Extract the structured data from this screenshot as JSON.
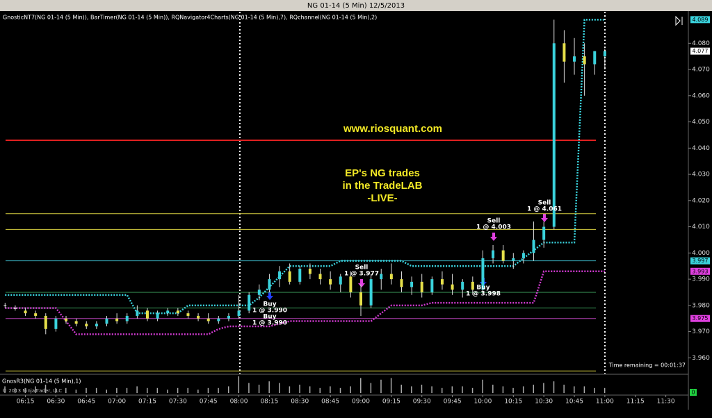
{
  "chart_data": {
    "type": "candlestick",
    "title": "NG 01-14 (5 Min)  12/5/2013",
    "indicators": "GnosticNT7(NG 01-14 (5 Min)), BarTimer(NG 01-14 (5 Min)), RQNavigator4Charts(NG 01-14 (5 Min),7), RQchannel(NG 01-14 (5 Min),2)",
    "categories": [
      null,
      null,
      "06:15",
      null,
      null,
      "06:30",
      null,
      null,
      "06:45",
      null,
      null,
      "07:00",
      null,
      null,
      "07:15",
      null,
      null,
      "07:30",
      null,
      null,
      "07:45",
      null,
      null,
      "08:00",
      null,
      null,
      "08:15",
      null,
      null,
      "08:30",
      null,
      null,
      "08:45",
      null,
      null,
      "09:00",
      null,
      null,
      "09:15",
      null,
      null,
      "09:30",
      null,
      null,
      "09:45",
      null,
      null,
      "10:00",
      null,
      null,
      "10:15",
      null,
      null,
      "10:30",
      null,
      null,
      "10:45",
      null,
      null,
      "11:00",
      null,
      null,
      "11:15",
      null,
      null,
      "11:30",
      null,
      null
    ],
    "open": [
      3.98,
      3.979,
      3.978,
      3.977,
      3.976,
      3.971,
      3.975,
      3.974,
      3.973,
      3.972,
      3.973,
      3.975,
      3.974,
      3.976,
      3.978,
      3.975,
      3.977,
      3.978,
      3.977,
      3.976,
      3.975,
      3.974,
      3.975,
      3.976,
      3.978,
      3.984,
      3.986,
      3.99,
      3.993,
      3.989,
      3.994,
      3.992,
      3.99,
      3.988,
      3.991,
      3.985,
      3.98,
      3.99,
      3.992,
      3.99,
      3.987,
      3.989,
      3.985,
      3.99,
      3.988,
      3.986,
      3.989,
      3.986,
      3.998,
      4.001,
      3.997,
      3.998,
      4.0,
      4.005,
      4.01,
      4.08,
      4.073,
      4.075,
      4.072,
      4.075,
      null,
      null,
      null,
      null,
      null,
      null,
      null,
      null
    ],
    "high": [
      3.981,
      3.98,
      3.979,
      3.978,
      3.977,
      3.976,
      3.976,
      3.975,
      3.974,
      3.974,
      3.976,
      3.977,
      3.977,
      3.98,
      3.979,
      3.978,
      3.979,
      3.979,
      3.978,
      3.977,
      3.977,
      3.976,
      3.977,
      3.984,
      3.985,
      3.988,
      3.992,
      3.995,
      3.996,
      3.995,
      3.996,
      3.994,
      3.993,
      3.992,
      3.993,
      3.988,
      3.992,
      3.994,
      3.996,
      3.993,
      3.991,
      3.992,
      3.991,
      3.993,
      3.992,
      3.99,
      3.991,
      4.001,
      4.003,
      4.003,
      4.0,
      4.001,
      4.012,
      4.012,
      4.089,
      4.085,
      4.082,
      4.08,
      4.077,
      4.078,
      null,
      null,
      null,
      null,
      null,
      null,
      null,
      null
    ],
    "low": [
      3.979,
      3.978,
      3.976,
      3.975,
      3.969,
      3.97,
      3.973,
      3.972,
      3.971,
      3.971,
      3.972,
      3.973,
      3.973,
      3.975,
      3.974,
      3.974,
      3.976,
      3.976,
      3.975,
      3.974,
      3.973,
      3.973,
      3.974,
      3.975,
      3.977,
      3.982,
      3.985,
      3.987,
      3.988,
      3.988,
      3.99,
      3.988,
      3.986,
      3.985,
      3.983,
      3.976,
      3.979,
      3.986,
      3.988,
      3.985,
      3.984,
      3.983,
      3.984,
      3.986,
      3.984,
      3.983,
      3.984,
      3.985,
      3.996,
      3.996,
      3.994,
      3.996,
      3.997,
      4.002,
      4.009,
      4.065,
      4.068,
      4.06,
      4.068,
      4.07,
      null,
      null,
      null,
      null,
      null,
      null,
      null,
      null
    ],
    "close": [
      3.98,
      3.979,
      3.977,
      3.976,
      3.971,
      3.975,
      3.974,
      3.973,
      3.972,
      3.973,
      3.975,
      3.974,
      3.976,
      3.978,
      3.975,
      3.977,
      3.978,
      3.977,
      3.976,
      3.975,
      3.974,
      3.975,
      3.976,
      3.978,
      3.984,
      3.986,
      3.99,
      3.993,
      3.989,
      3.994,
      3.992,
      3.99,
      3.988,
      3.991,
      3.985,
      3.98,
      3.99,
      3.992,
      3.99,
      3.987,
      3.989,
      3.985,
      3.99,
      3.988,
      3.986,
      3.989,
      3.986,
      3.998,
      4.001,
      3.997,
      3.998,
      4.0,
      4.005,
      4.01,
      4.08,
      4.073,
      4.075,
      4.072,
      4.077,
      4.077,
      null,
      null,
      null,
      null,
      null,
      null,
      null,
      null
    ],
    "up_color": "#3ad2dc",
    "down_color": "#e6e04a",
    "flat_color": "#ffffff",
    "ylim": [
      3.954,
      4.092
    ],
    "yticks": [
      {
        "value": 3.96,
        "label": "3.960"
      },
      {
        "value": 3.97,
        "label": "3.970"
      },
      {
        "value": 3.98,
        "label": "3.980"
      },
      {
        "value": 3.99,
        "label": "3.990"
      },
      {
        "value": 4.0,
        "label": "4.000"
      },
      {
        "value": 4.01,
        "label": "4.010"
      },
      {
        "value": 4.02,
        "label": "4.020"
      },
      {
        "value": 4.03,
        "label": "4.030"
      },
      {
        "value": 4.04,
        "label": "4.040"
      },
      {
        "value": 4.05,
        "label": "4.050"
      },
      {
        "value": 4.06,
        "label": "4.060"
      },
      {
        "value": 4.07,
        "label": "4.070"
      },
      {
        "value": 4.08,
        "label": "4.080"
      }
    ],
    "price_tags": [
      {
        "value": 4.089,
        "label": "4.089",
        "color": "#3ad2dc"
      },
      {
        "value": 4.077,
        "label": "4.077",
        "color": "#ffffff"
      },
      {
        "value": 3.997,
        "label": "3.997",
        "color": "#3ad2dc"
      },
      {
        "value": 3.993,
        "label": "3.993",
        "color": "#e040e0"
      },
      {
        "value": 3.975,
        "label": "3.975",
        "color": "#e040e0"
      }
    ],
    "levels": [
      {
        "value": 4.043,
        "color": "#e02020"
      },
      {
        "value": 4.015,
        "color": "#d8d040"
      },
      {
        "value": 4.009,
        "color": "#d8d040"
      },
      {
        "value": 3.955,
        "color": "#d8d040"
      },
      {
        "value": 3.985,
        "color": "#3a9a5a"
      },
      {
        "value": 3.979,
        "color": "#3a9a5a"
      },
      {
        "value": 3.997,
        "color": "#3ab0c0"
      },
      {
        "value": 3.975,
        "color": "#b040b0"
      }
    ],
    "overlays": [
      {
        "color": "#3ad2dc",
        "values": [
          3.984,
          3.984,
          3.984,
          3.984,
          3.984,
          3.984,
          3.984,
          3.984,
          3.984,
          3.984,
          3.984,
          3.984,
          3.984,
          3.977,
          3.977,
          3.977,
          3.977,
          3.977,
          3.98,
          3.98,
          3.98,
          3.98,
          3.98,
          3.98,
          3.98,
          3.983,
          3.987,
          3.991,
          3.995,
          3.995,
          3.995,
          3.995,
          3.995,
          3.997,
          3.997,
          3.997,
          3.997,
          3.997,
          3.997,
          3.997,
          3.995,
          3.995,
          3.995,
          3.995,
          3.995,
          3.995,
          3.995,
          3.995,
          3.995,
          3.995,
          3.995,
          3.998,
          4.001,
          4.004,
          4.004,
          4.004,
          4.004,
          4.089,
          4.089,
          4.089,
          null,
          null,
          null,
          null,
          null,
          null,
          null,
          null
        ]
      },
      {
        "color": "#d03ad0",
        "values": [
          3.979,
          3.979,
          3.979,
          3.979,
          3.979,
          3.979,
          3.974,
          3.969,
          3.969,
          3.969,
          3.969,
          3.969,
          3.969,
          3.969,
          3.969,
          3.969,
          3.969,
          3.969,
          3.969,
          3.969,
          3.969,
          3.971,
          3.972,
          3.972,
          3.972,
          3.972,
          3.972,
          3.973,
          3.974,
          3.974,
          3.974,
          3.974,
          3.974,
          3.974,
          3.974,
          3.974,
          3.974,
          3.977,
          3.98,
          3.98,
          3.98,
          3.98,
          3.981,
          3.981,
          3.981,
          3.981,
          3.981,
          3.981,
          3.981,
          3.981,
          3.981,
          3.981,
          3.981,
          3.993,
          3.993,
          3.993,
          3.993,
          3.993,
          3.993,
          3.993,
          null,
          null,
          null,
          null,
          null,
          null,
          null,
          null
        ]
      }
    ],
    "annotations": {
      "website": "www.riosquant.com",
      "headline": [
        "EP's NG trades",
        "in the TradeLAB",
        "-LIVE-"
      ],
      "time_remaining": "Time remaining = 00:01:37"
    },
    "trades": [
      {
        "action": "Buy",
        "detail": "1 @ 3.990"
      },
      {
        "action": "Buy",
        "detail": "1 @ 3.990"
      },
      {
        "action": "Sell",
        "detail": "1 @ 3.977"
      },
      {
        "action": "Buy",
        "detail": "1 @ 3.998"
      },
      {
        "action": "Sell",
        "detail": "1 @ 4.003"
      },
      {
        "action": "Sell",
        "detail": "1 @ 4.061"
      }
    ],
    "lower_panel": {
      "title": "GnosR3(NG 01-14 (5 Min),1)",
      "tag": "0",
      "ylim": [
        0,
        1
      ],
      "values": [
        0.4,
        0.3,
        0.3,
        0.4,
        0.5,
        0.3,
        0.3,
        0.2,
        0.3,
        0.3,
        0.2,
        0.3,
        0.3,
        0.4,
        0.3,
        0.3,
        0.2,
        0.3,
        0.3,
        0.2,
        0.3,
        0.3,
        0.4,
        1.0,
        0.6,
        0.5,
        0.7,
        0.6,
        0.4,
        0.5,
        0.4,
        0.3,
        0.4,
        0.3,
        0.4,
        0.9,
        0.6,
        0.8,
        0.9,
        0.5,
        0.4,
        0.5,
        0.4,
        0.3,
        0.4,
        0.4,
        0.3,
        0.8,
        0.5,
        0.4,
        0.3,
        0.4,
        0.5,
        0.6,
        0.7,
        0.5,
        0.4,
        0.4,
        0.3,
        0.3,
        null,
        null,
        null,
        null,
        null,
        null,
        null,
        null
      ]
    },
    "copyright": "© 2013 NinjaTrader, LLC"
  }
}
